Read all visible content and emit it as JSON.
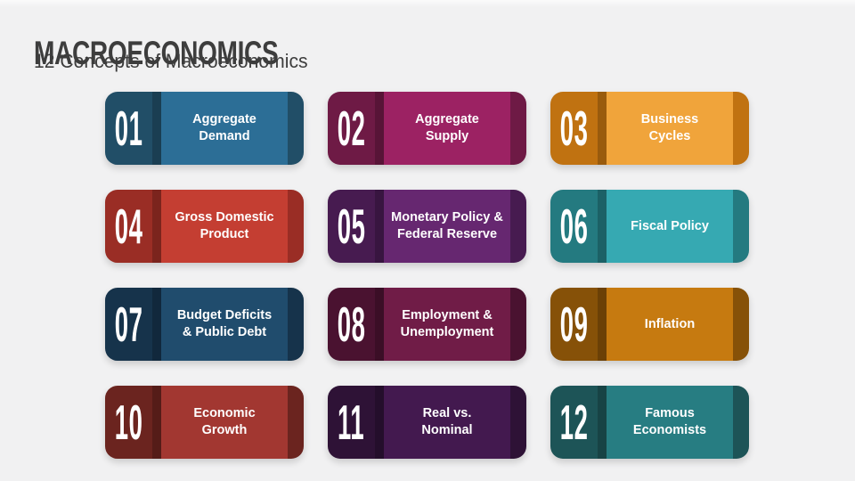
{
  "slide": {
    "title": "MACROECONOMICS",
    "subtitle": "12 Concepts of Macroeconomics",
    "background_color": "#f1f1f2",
    "text_color": "#3d3d3d"
  },
  "cards": [
    {
      "number": "01",
      "label": "Aggregate\nDemand",
      "colors": {
        "dark": "#214E67",
        "light": "#2C6E96"
      }
    },
    {
      "number": "02",
      "label": "Aggregate\nSupply",
      "colors": {
        "dark": "#6E1A45",
        "light": "#9C2263"
      }
    },
    {
      "number": "03",
      "label": "Business\nCycles",
      "colors": {
        "dark": "#C07211",
        "light": "#F0A43B"
      }
    },
    {
      "number": "04",
      "label": "Gross Domestic\nProduct",
      "colors": {
        "dark": "#9A2D25",
        "light": "#C43E32"
      }
    },
    {
      "number": "05",
      "label": "Monetary Policy &\nFederal Reserve",
      "colors": {
        "dark": "#471B50",
        "light": "#662770"
      }
    },
    {
      "number": "06",
      "label": "Fiscal Policy",
      "colors": {
        "dark": "#247A80",
        "light": "#36A9B2"
      }
    },
    {
      "number": "07",
      "label": "Budget Deficits\n& Public Debt",
      "colors": {
        "dark": "#16334B",
        "light": "#204C6D"
      }
    },
    {
      "number": "08",
      "label": "Employment &\nUnemployment",
      "colors": {
        "dark": "#4A1230",
        "light": "#701C47"
      }
    },
    {
      "number": "09",
      "label": "Inflation",
      "colors": {
        "dark": "#865108",
        "light": "#C67A10"
      }
    },
    {
      "number": "10",
      "label": "Economic\nGrowth",
      "colors": {
        "dark": "#6B241F",
        "light": "#A23731"
      }
    },
    {
      "number": "11",
      "label": "Real vs.\nNominal",
      "colors": {
        "dark": "#2E1236",
        "light": "#43194F"
      }
    },
    {
      "number": "12",
      "label": "Famous\nEconomists",
      "colors": {
        "dark": "#1D5457",
        "light": "#277D82"
      }
    }
  ]
}
